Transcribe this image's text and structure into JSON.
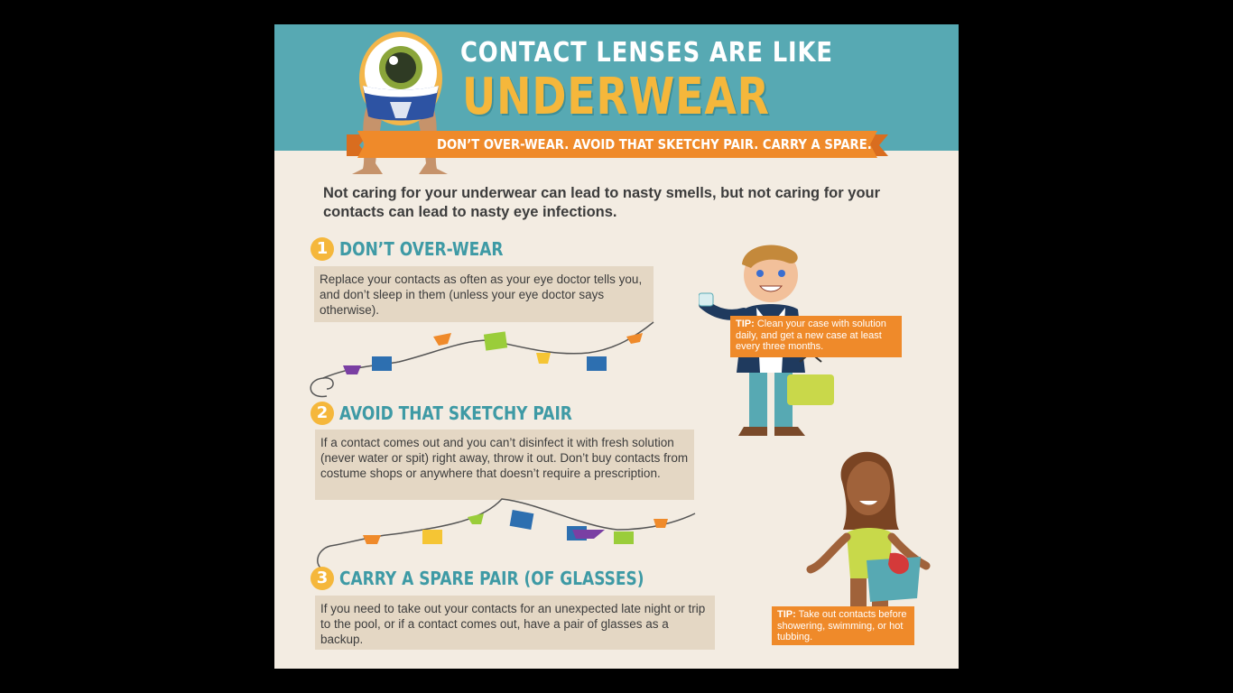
{
  "header": {
    "title_line1": "CONTACT LENSES ARE LIKE",
    "title_line2": "UNDERWEAR",
    "banner": "DON’T OVER-WEAR. AVOID THAT SKETCHY PAIR. CARRY A SPARE."
  },
  "intro": "Not caring for your underwear can lead to nasty smells, but not caring for your contacts can lead to nasty eye infections.",
  "sections": [
    {
      "number": "1",
      "title": "DON’T OVER-WEAR",
      "body": "Replace your contacts as often as your eye doctor tells you, and don’t sleep in them (unless your eye doctor says otherwise)."
    },
    {
      "number": "2",
      "title": "AVOID THAT SKETCHY PAIR",
      "body": "If a contact comes out and you can’t disinfect it with fresh solution (never water or spit) right away, throw it out. Don’t buy contacts from costume shops or anywhere that doesn’t require a prescription."
    },
    {
      "number": "3",
      "title": "CARRY A SPARE PAIR (OF GLASSES)",
      "body": "If you need to take out your contacts for an unexpected late night or trip to the pool, or if a contact comes out, have a pair of glasses as a backup."
    }
  ],
  "tips": [
    {
      "label": "TIP:",
      "text": "Clean your case with solution daily, and get a new case at least every three months."
    },
    {
      "label": "TIP:",
      "text": "Take out contacts before showering, swimming, or hot tubbing."
    }
  ],
  "colors": {
    "teal": "#57a9b3",
    "title_teal": "#3e9aa5",
    "yellow": "#f5b73b",
    "orange": "#ef8a2a",
    "cream": "#f3ece2",
    "box": "#e4d7c4"
  }
}
